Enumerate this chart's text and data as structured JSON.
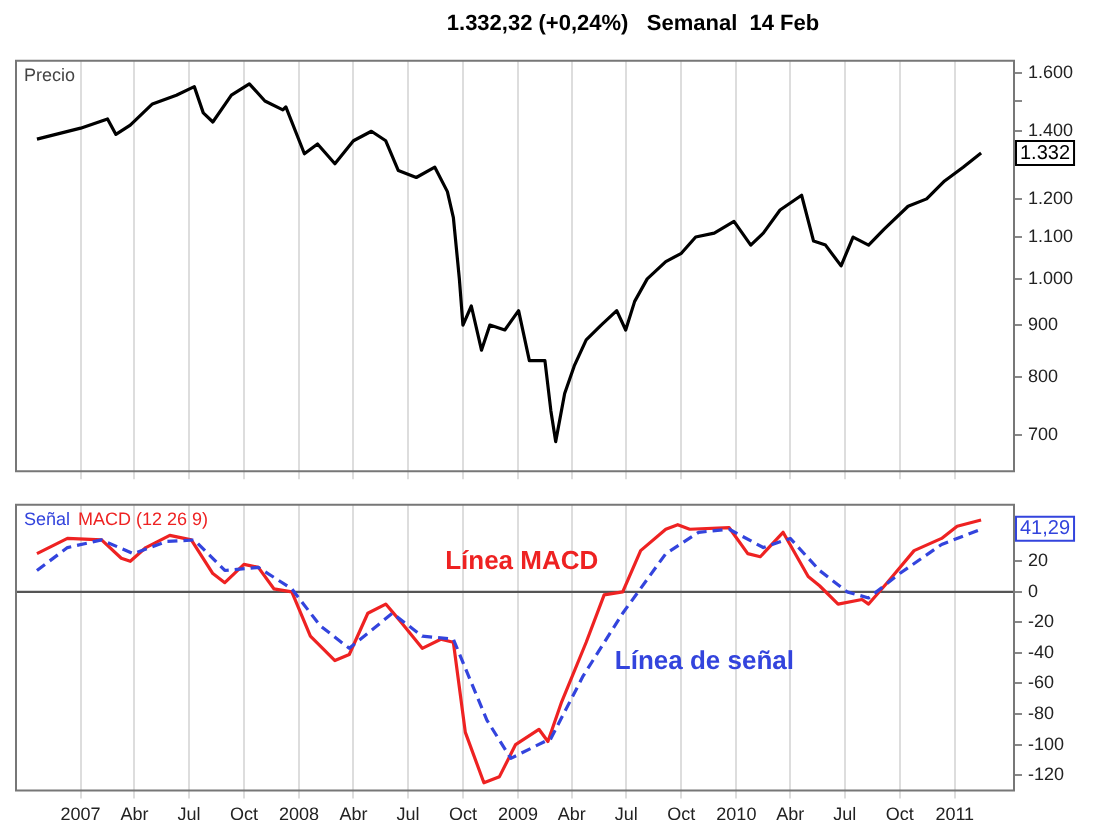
{
  "chart_data": [
    {
      "type": "line",
      "title": "1.332,32 (+0,24%)   Semanal  14 Feb",
      "annotations": [
        "Precio",
        {
          "text": "1.332",
          "y": 1332
        }
      ],
      "x": [
        "2006-10-20",
        "2007-01-01",
        "2007-02-15",
        "2007-03-01",
        "2007-03-25",
        "2007-05-01",
        "2007-06-10",
        "2007-07-10",
        "2007-07-25",
        "2007-08-10",
        "2007-09-10",
        "2007-10-10",
        "2007-11-05",
        "2007-12-05",
        "2007-12-10",
        "2008-01-10",
        "2008-02-01",
        "2008-03-01",
        "2008-04-01",
        "2008-05-01",
        "2008-05-25",
        "2008-06-15",
        "2008-07-15",
        "2008-08-15",
        "2008-09-05",
        "2008-09-15",
        "2008-09-25",
        "2008-10-01",
        "2008-10-15",
        "2008-11-01",
        "2008-11-15",
        "2008-12-10",
        "2009-01-02",
        "2009-01-20",
        "2009-02-15",
        "2009-02-25",
        "2009-03-05",
        "2009-03-20",
        "2009-04-05",
        "2009-04-25",
        "2009-05-20",
        "2009-06-15",
        "2009-06-30",
        "2009-07-15",
        "2009-08-05",
        "2009-09-05",
        "2009-10-01",
        "2009-10-25",
        "2009-11-25",
        "2009-12-28",
        "2010-01-25",
        "2010-02-15",
        "2010-03-15",
        "2010-04-20",
        "2010-05-10",
        "2010-05-30",
        "2010-06-25",
        "2010-07-15",
        "2010-08-10",
        "2010-09-05",
        "2010-10-15",
        "2010-11-15",
        "2010-12-15",
        "2011-01-15",
        "2011-02-14"
      ],
      "series": [
        {
          "color": "#000000",
          "values": [
            1375,
            1410,
            1440,
            1390,
            1420,
            1490,
            1520,
            1550,
            1460,
            1430,
            1520,
            1560,
            1500,
            1470,
            1480,
            1330,
            1360,
            1300,
            1370,
            1400,
            1370,
            1280,
            1260,
            1290,
            1220,
            1150,
            1000,
            900,
            940,
            850,
            900,
            890,
            930,
            830,
            830,
            740,
            690,
            770,
            820,
            870,
            900,
            930,
            890,
            950,
            1000,
            1040,
            1060,
            1100,
            1110,
            1140,
            1080,
            1110,
            1170,
            1210,
            1090,
            1080,
            1030,
            1100,
            1080,
            1120,
            1180,
            1200,
            1250,
            1290,
            1332
          ]
        }
      ],
      "xlim": [
        "2006-09-15",
        "2011-04-10"
      ],
      "xticks": [
        {
          "value": "2007-01-01",
          "label": null
        },
        {
          "value": "2007-04-01",
          "label": null
        },
        {
          "value": "2007-07-01",
          "label": null
        },
        {
          "value": "2007-10-01",
          "label": null
        },
        {
          "value": "2008-01-01",
          "label": null
        },
        {
          "value": "2008-04-01",
          "label": null
        },
        {
          "value": "2008-07-01",
          "label": null
        },
        {
          "value": "2008-10-01",
          "label": null
        },
        {
          "value": "2009-01-01",
          "label": null
        },
        {
          "value": "2009-04-01",
          "label": null
        },
        {
          "value": "2009-07-01",
          "label": null
        },
        {
          "value": "2009-10-01",
          "label": null
        },
        {
          "value": "2010-01-01",
          "label": null
        },
        {
          "value": "2010-04-01",
          "label": null
        },
        {
          "value": "2010-07-01",
          "label": null
        },
        {
          "value": "2010-10-01",
          "label": null
        },
        {
          "value": "2011-01-01",
          "label": null
        }
      ],
      "ylim": [
        645,
        1644
      ],
      "yticks": [
        700,
        800,
        900,
        {
          "value": 1000,
          "label": "1.000"
        },
        {
          "value": 1100,
          "label": "1.100"
        },
        {
          "value": 1200,
          "label": "1.200"
        },
        {
          "value": 1400,
          "label": "1.400"
        },
        {
          "value": 1500,
          "label": null
        },
        {
          "value": 1600,
          "label": "1.600"
        }
      ],
      "log": "y",
      "grid": "x",
      "tick_labels": "y",
      "marker": "none"
    },
    {
      "type": "line",
      "annotations": [
        "Señal",
        "MACD (12 26 9)",
        {
          "text": "41,29",
          "y": 41.29
        }
      ],
      "series": [
        {
          "name": "Línea de señal",
          "color": "#3344dd",
          "line_style": "dashed",
          "x": [
            "2006-10-20",
            "2006-12-10",
            "2007-02-05",
            "2007-03-30",
            "2007-05-25",
            "2007-07-10",
            "2007-08-30",
            "2007-10-25",
            "2007-12-20",
            "2008-02-05",
            "2008-03-25",
            "2008-06-05",
            "2008-07-25",
            "2008-09-15",
            "2008-11-10",
            "2008-12-20",
            "2009-02-25",
            "2009-04-20",
            "2009-06-25",
            "2009-09-05",
            "2009-10-30",
            "2009-12-20",
            "2010-02-15",
            "2010-04-01",
            "2010-05-20",
            "2010-07-05",
            "2010-08-10",
            "2010-10-01",
            "2010-12-10",
            "2011-02-14"
          ],
          "values": [
            14,
            29,
            34,
            25,
            33,
            34,
            14,
            16,
            2,
            -22,
            -37,
            -14,
            -29,
            -31,
            -84,
            -109,
            -96,
            -55,
            -14,
            25,
            39,
            41,
            29,
            35,
            14,
            0,
            -4,
            12,
            31,
            41
          ]
        },
        {
          "name": "Línea MACD",
          "color": "#ee2222",
          "line_style": "solid",
          "x": [
            "2006-10-20",
            "2006-12-10",
            "2007-02-05",
            "2007-03-10",
            "2007-03-25",
            "2007-04-20",
            "2007-05-30",
            "2007-07-05",
            "2007-08-10",
            "2007-08-30",
            "2007-10-01",
            "2007-10-25",
            "2007-11-20",
            "2007-12-20",
            "2008-01-20",
            "2008-03-01",
            "2008-03-25",
            "2008-04-25",
            "2008-05-25",
            "2008-06-20",
            "2008-07-25",
            "2008-08-25",
            "2008-09-15",
            "2008-10-05",
            "2008-11-05",
            "2008-12-01",
            "2008-12-28",
            "2009-02-05",
            "2009-02-20",
            "2009-03-15",
            "2009-04-25",
            "2009-05-25",
            "2009-06-25",
            "2009-07-25",
            "2009-09-05",
            "2009-09-25",
            "2009-10-15",
            "2009-12-20",
            "2010-01-20",
            "2010-02-10",
            "2010-03-20",
            "2010-05-01",
            "2010-05-20",
            "2010-06-20",
            "2010-07-30",
            "2010-08-10",
            "2010-09-10",
            "2010-10-25",
            "2010-12-10",
            "2011-01-05",
            "2011-02-14"
          ],
          "values": [
            25,
            35,
            34,
            22,
            20,
            29,
            37,
            34,
            12,
            6,
            18,
            16,
            2,
            0,
            -29,
            -45,
            -41,
            -14,
            -8,
            -20,
            -37,
            -31,
            -33,
            -92,
            -125,
            -121,
            -100,
            -90,
            -98,
            -72,
            -33,
            -2,
            0,
            27,
            41,
            44,
            41,
            42,
            25,
            23,
            39,
            10,
            4,
            -8,
            -5,
            -8,
            6,
            27,
            35,
            43,
            47
          ]
        }
      ],
      "xlim": [
        "2006-09-15",
        "2011-04-10"
      ],
      "xticks": [
        {
          "value": "2007-01-01",
          "label": "2007"
        },
        {
          "value": "2007-04-01",
          "label": "Abr"
        },
        {
          "value": "2007-07-01",
          "label": "Jul"
        },
        {
          "value": "2007-10-01",
          "label": "Oct"
        },
        {
          "value": "2008-01-01",
          "label": "2008"
        },
        {
          "value": "2008-04-01",
          "label": "Abr"
        },
        {
          "value": "2008-07-01",
          "label": "Jul"
        },
        {
          "value": "2008-10-01",
          "label": "Oct"
        },
        {
          "value": "2009-01-01",
          "label": "2009"
        },
        {
          "value": "2009-04-01",
          "label": "Abr"
        },
        {
          "value": "2009-07-01",
          "label": "Jul"
        },
        {
          "value": "2009-10-01",
          "label": "Oct"
        },
        {
          "value": "2010-01-01",
          "label": "2010"
        },
        {
          "value": "2010-04-01",
          "label": "Abr"
        },
        {
          "value": "2010-07-01",
          "label": "Jul"
        },
        {
          "value": "2010-10-01",
          "label": "Oct"
        },
        {
          "value": "2011-01-01",
          "label": "2011"
        }
      ],
      "ylim": [
        -130,
        57
      ],
      "yticks": [
        -120,
        -100,
        -80,
        -60,
        -40,
        -20,
        0,
        20
      ],
      "ref_lines": [
        {
          "axis": "y",
          "value": 0,
          "color": "#555555"
        }
      ],
      "grid": "x",
      "marker": "none"
    }
  ]
}
